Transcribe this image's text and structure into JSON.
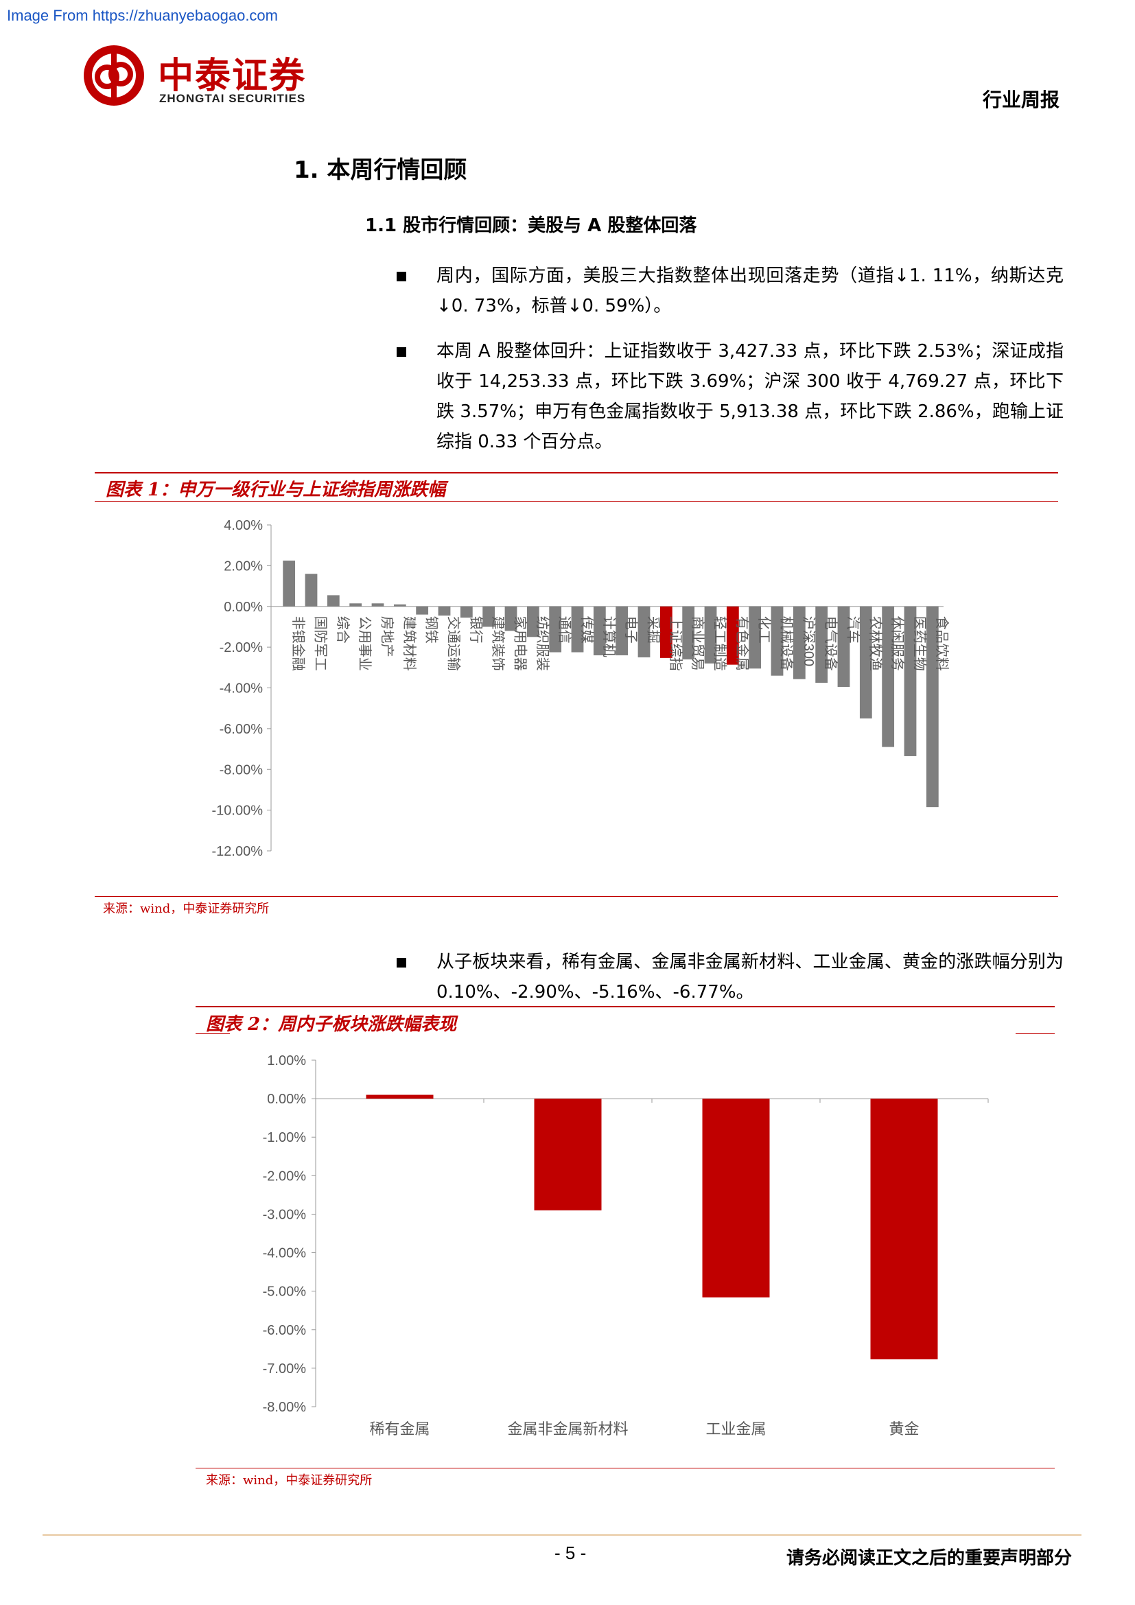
{
  "watermark": "Image From https://zhuanyebaogao.com",
  "header": {
    "logo_cn": "中泰证券",
    "logo_en": "ZHONGTAI SECURITIES",
    "report_type": "行业周报"
  },
  "section": {
    "h1": "1. 本周行情回顾",
    "h2": "1.1 股市行情回顾：美股与 A 股整体回落"
  },
  "paragraphs": [
    {
      "text": "周内，国际方面，美股三大指数整体出现回落走势（道指↓1. 11%，纳斯达克↓0. 73%，标普↓0. 59%）。"
    },
    {
      "text": "本周 A 股整体回升：上证指数收于 3,427.33 点，环比下跌 2.53%；深证成指收于 14,253.33 点，环比下跌 3.69%；沪深 300 收于 4,769.27 点，环比下跌 3.57%；申万有色金属指数收于 5,913.38 点，环比下跌 2.86%，跑输上证综指 0.33 个百分点。"
    },
    {
      "text": "从子板块来看，稀有金属、金属非金属新材料、工业金属、黄金的涨跌幅分别为 0.10%、-2.90%、-5.16%、-6.77%。"
    }
  ],
  "figures": {
    "fig1_title": "图表 1：申万一级行业与上证综指周涨跌幅",
    "fig1_source": "来源：wind，中泰证券研究所",
    "fig2_title": "图表 2：周内子板块涨跌幅表现",
    "fig2_source": "来源：wind，中泰证券研究所"
  },
  "footer": {
    "page": "- 5 -",
    "disclaimer": "请务必阅读正文之后的重要声明部分"
  },
  "chart_data": [
    {
      "type": "bar",
      "title": "图表 1：申万一级行业与上证综指周涨跌幅",
      "categories": [
        "非银金融",
        "国防军工",
        "综合",
        "公用事业",
        "房地产",
        "建筑材料",
        "钢铁",
        "交通运输",
        "银行",
        "建筑装饰",
        "家用电器",
        "纺织服装",
        "通信",
        "传媒",
        "计算机",
        "电子",
        "采掘",
        "上证综指",
        "商业贸易",
        "轻工制造",
        "有色金属",
        "化工",
        "机械设备",
        "沪深300",
        "电气设备",
        "汽车",
        "农林牧渔",
        "休闲服务",
        "医药生物",
        "食品饮料"
      ],
      "values": [
        2.25,
        1.6,
        0.55,
        0.15,
        0.15,
        0.1,
        -0.4,
        -0.45,
        -0.55,
        -1.0,
        -1.2,
        -1.5,
        -2.25,
        -2.25,
        -2.4,
        -2.4,
        -2.5,
        -2.53,
        -2.6,
        -2.8,
        -2.86,
        -3.05,
        -3.4,
        -3.57,
        -3.75,
        -3.95,
        -5.5,
        -6.9,
        -7.35,
        -9.85
      ],
      "highlight": [
        "上证综指",
        "有色金属"
      ],
      "colors": {
        "default": "#7f7f7f",
        "highlight": "#c00000"
      },
      "ylim": [
        -12,
        4
      ],
      "yticks": [
        4,
        2,
        0,
        -2,
        -4,
        -6,
        -8,
        -10,
        -12
      ],
      "unit": "%"
    },
    {
      "type": "bar",
      "title": "图表 2：周内子板块涨跌幅表现",
      "categories": [
        "稀有金属",
        "金属非金属新材料",
        "工业金属",
        "黄金"
      ],
      "values": [
        0.1,
        -2.9,
        -5.16,
        -6.77
      ],
      "colors": {
        "default": "#c00000"
      },
      "ylim": [
        -8,
        1
      ],
      "yticks": [
        1,
        0,
        -1,
        -2,
        -3,
        -4,
        -5,
        -6,
        -7,
        -8
      ],
      "unit": "%"
    }
  ]
}
